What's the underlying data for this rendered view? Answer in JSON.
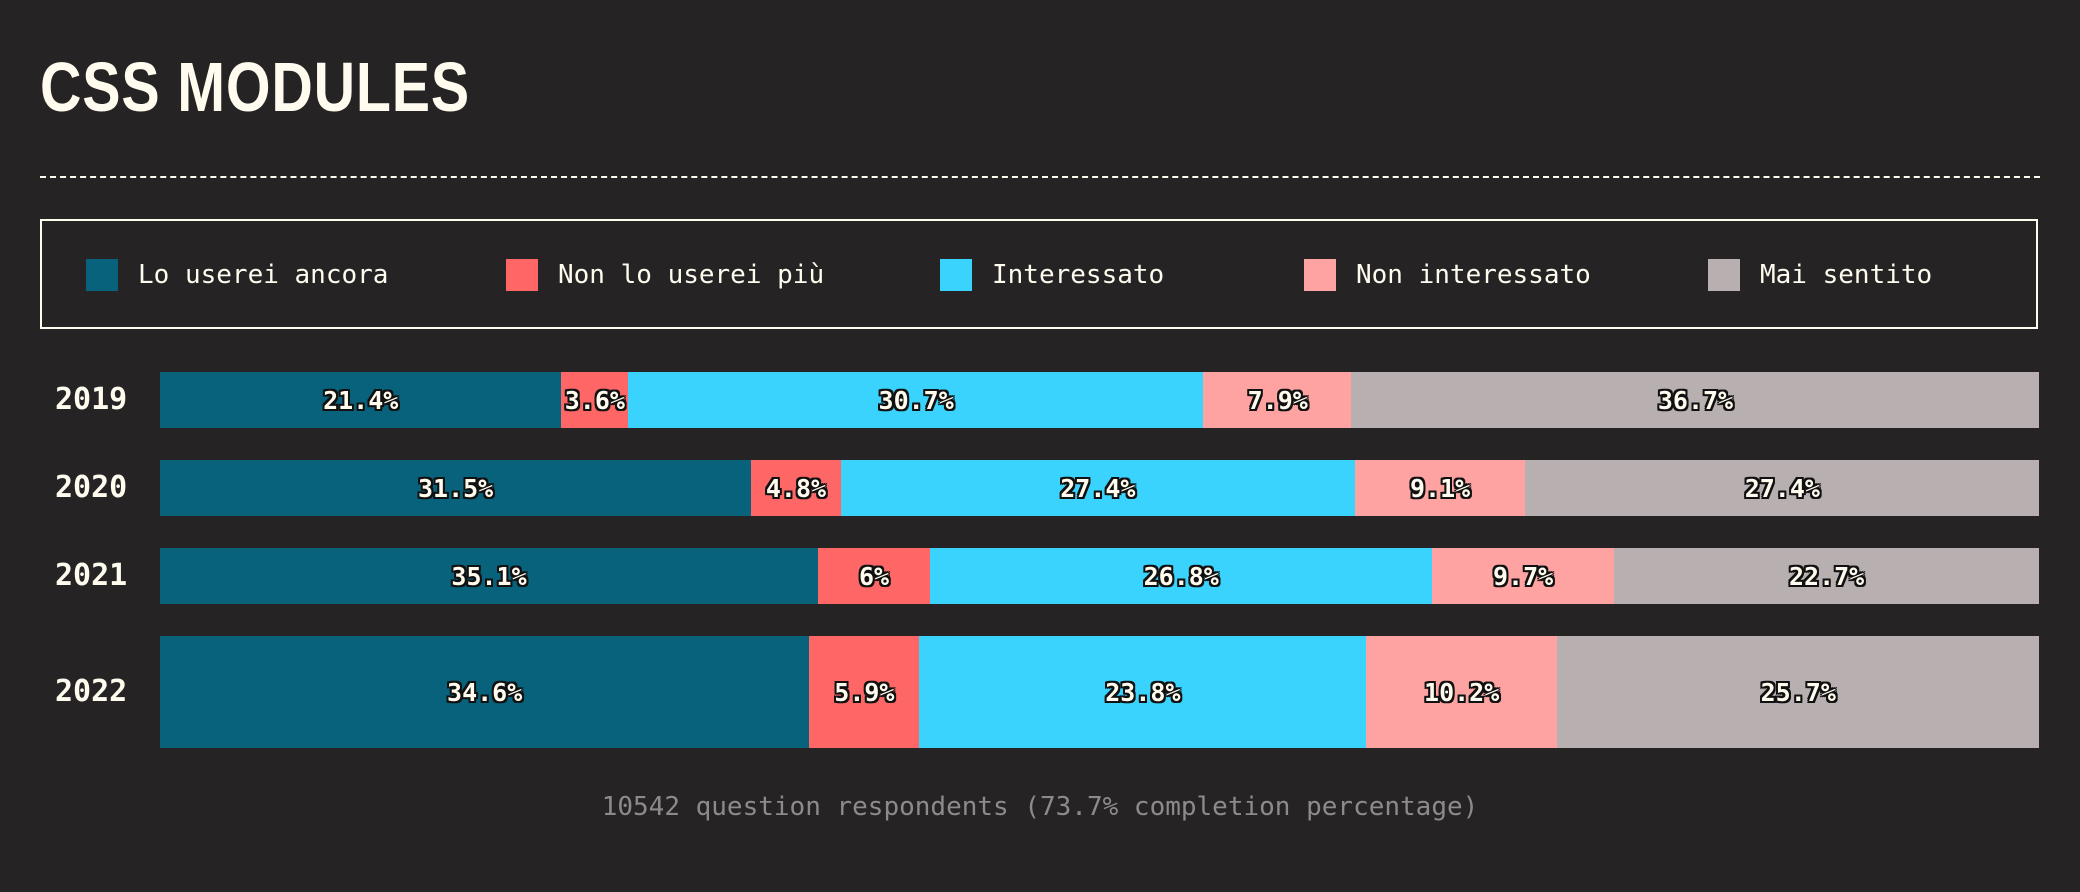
{
  "page": {
    "title": "CSS MODULES",
    "footnote": "10542 question respondents (73.7% completion percentage)"
  },
  "legend": [
    {
      "label": "Lo userei ancora",
      "color": "#08627b"
    },
    {
      "label": "Non lo userei più",
      "color": "#ff6767"
    },
    {
      "label": "Interessato",
      "color": "#39d3fd"
    },
    {
      "label": "Non interessato",
      "color": "#ffa2a2"
    },
    {
      "label": "Mai sentito",
      "color": "#b8afb0"
    }
  ],
  "chart_data": {
    "type": "bar",
    "orientation": "horizontal",
    "stacked": true,
    "normalized": true,
    "categories": [
      "2019",
      "2020",
      "2021",
      "2022"
    ],
    "series": [
      {
        "name": "Lo userei ancora",
        "color": "#08627b",
        "values": [
          21.4,
          31.5,
          35.1,
          34.6
        ],
        "labels": [
          "21.4%",
          "31.5%",
          "35.1%",
          "34.6%"
        ]
      },
      {
        "name": "Non lo userei più",
        "color": "#ff6767",
        "values": [
          3.6,
          4.8,
          6.0,
          5.9
        ],
        "labels": [
          "3.6%",
          "4.8%",
          "6%",
          "5.9%"
        ]
      },
      {
        "name": "Interessato",
        "color": "#39d3fd",
        "values": [
          30.7,
          27.4,
          26.8,
          23.8
        ],
        "labels": [
          "30.7%",
          "27.4%",
          "26.8%",
          "23.8%"
        ]
      },
      {
        "name": "Non interessato",
        "color": "#ffa2a2",
        "values": [
          7.9,
          9.1,
          9.7,
          10.2
        ],
        "labels": [
          "7.9%",
          "9.1%",
          "9.7%",
          "10.2%"
        ]
      },
      {
        "name": "Mai sentito",
        "color": "#b8afb0",
        "values": [
          36.7,
          27.4,
          22.7,
          25.7
        ],
        "labels": [
          "36.7%",
          "27.4%",
          "22.7%",
          "25.7%"
        ]
      }
    ],
    "legend_position": "top",
    "grid": false
  }
}
